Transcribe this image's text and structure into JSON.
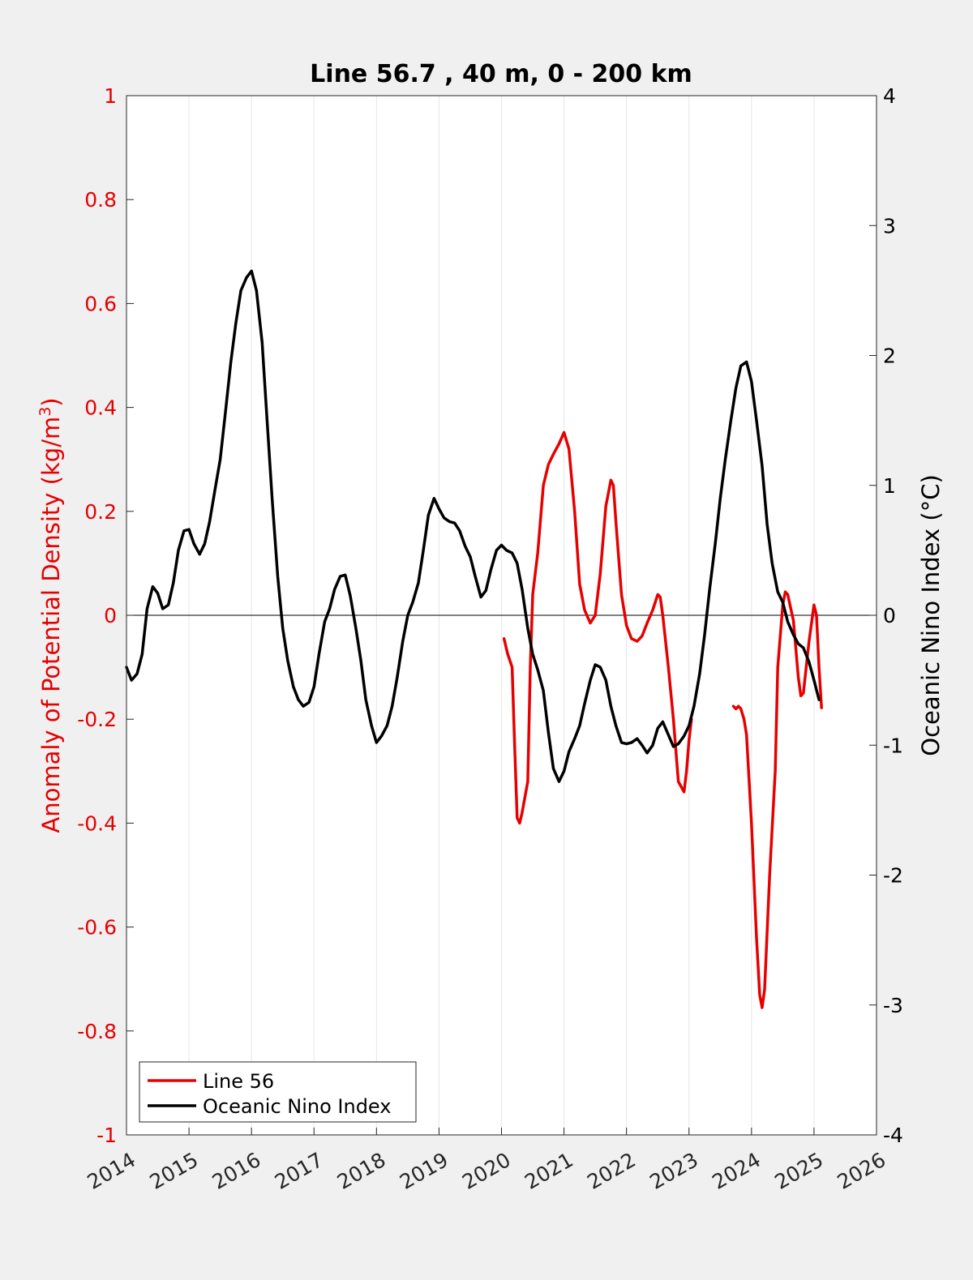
{
  "chart_data": {
    "type": "line",
    "title": "Line 56.7 , 40 m, 0 - 200 km",
    "xlabel": "",
    "xlim": [
      2014,
      2026
    ],
    "x_ticks": [
      "2014",
      "2015",
      "2016",
      "2017",
      "2018",
      "2019",
      "2020",
      "2021",
      "2022",
      "2023",
      "2024",
      "2025",
      "2026"
    ],
    "left_axis": {
      "label_main": "Anomaly of Potential Density (kg/m",
      "label_sup": "3",
      "label_end": ")",
      "ylim": [
        -1,
        1
      ],
      "ticks": [
        "1",
        "0.8",
        "0.6",
        "0.4",
        "0.2",
        "0",
        "-0.2",
        "-0.4",
        "-0.6",
        "-0.8",
        "-1"
      ],
      "tick_values": [
        1,
        0.8,
        0.6,
        0.4,
        0.2,
        0,
        -0.2,
        -0.4,
        -0.6,
        -0.8,
        -1
      ],
      "color": "#e60000"
    },
    "right_axis": {
      "label": "Oceanic Nino Index (°C)",
      "ylim": [
        -4,
        4
      ],
      "ticks": [
        "4",
        "3",
        "2",
        "1",
        "0",
        "-1",
        "-2",
        "-3",
        "-4"
      ],
      "tick_values": [
        4,
        3,
        2,
        1,
        0,
        -1,
        -2,
        -3,
        -4
      ],
      "color": "#000000"
    },
    "grid": "vertical",
    "zero_line": true,
    "legend_position": "bottom-left",
    "series": [
      {
        "name": "Line 56",
        "axis": "left",
        "color": "#e60000",
        "segments": [
          [
            [
              2020.04,
              -0.045
            ],
            [
              2020.1,
              -0.075
            ],
            [
              2020.17,
              -0.1
            ],
            [
              2020.21,
              -0.25
            ],
            [
              2020.25,
              -0.39
            ],
            [
              2020.29,
              -0.4
            ],
            [
              2020.33,
              -0.38
            ],
            [
              2020.42,
              -0.32
            ],
            [
              2020.46,
              -0.1
            ],
            [
              2020.5,
              0.04
            ],
            [
              2020.58,
              0.12
            ],
            [
              2020.67,
              0.25
            ],
            [
              2020.75,
              0.29
            ],
            [
              2020.83,
              0.31
            ],
            [
              2020.92,
              0.33
            ],
            [
              2021.0,
              0.352
            ],
            [
              2021.08,
              0.32
            ],
            [
              2021.17,
              0.2
            ],
            [
              2021.25,
              0.06
            ],
            [
              2021.33,
              0.01
            ],
            [
              2021.42,
              -0.015
            ],
            [
              2021.5,
              0.0
            ],
            [
              2021.58,
              0.08
            ],
            [
              2021.67,
              0.21
            ],
            [
              2021.75,
              0.26
            ],
            [
              2021.79,
              0.25
            ],
            [
              2021.83,
              0.18
            ],
            [
              2021.92,
              0.04
            ],
            [
              2022.0,
              -0.02
            ],
            [
              2022.08,
              -0.045
            ],
            [
              2022.17,
              -0.05
            ],
            [
              2022.25,
              -0.04
            ],
            [
              2022.33,
              -0.015
            ],
            [
              2022.42,
              0.01
            ],
            [
              2022.5,
              0.04
            ],
            [
              2022.54,
              0.035
            ],
            [
              2022.58,
              0.0
            ],
            [
              2022.67,
              -0.1
            ],
            [
              2022.75,
              -0.2
            ],
            [
              2022.83,
              -0.32
            ],
            [
              2022.92,
              -0.34
            ],
            [
              2022.96,
              -0.3
            ],
            [
              2023.0,
              -0.24
            ],
            [
              2023.04,
              -0.2
            ]
          ],
          [
            [
              2023.71,
              -0.175
            ],
            [
              2023.75,
              -0.18
            ],
            [
              2023.79,
              -0.175
            ],
            [
              2023.83,
              -0.18
            ],
            [
              2023.88,
              -0.2
            ],
            [
              2023.92,
              -0.23
            ],
            [
              2024.0,
              -0.4
            ],
            [
              2024.08,
              -0.62
            ],
            [
              2024.13,
              -0.73
            ],
            [
              2024.17,
              -0.755
            ],
            [
              2024.21,
              -0.72
            ],
            [
              2024.29,
              -0.5
            ],
            [
              2024.38,
              -0.3
            ],
            [
              2024.42,
              -0.1
            ],
            [
              2024.5,
              0.02
            ],
            [
              2024.54,
              0.045
            ],
            [
              2024.58,
              0.04
            ],
            [
              2024.67,
              -0.01
            ],
            [
              2024.75,
              -0.12
            ],
            [
              2024.79,
              -0.155
            ],
            [
              2024.83,
              -0.15
            ],
            [
              2024.92,
              -0.05
            ],
            [
              2025.0,
              0.02
            ],
            [
              2025.04,
              0.0
            ],
            [
              2025.08,
              -0.1
            ],
            [
              2025.12,
              -0.178
            ]
          ]
        ]
      },
      {
        "name": "Oceanic Nino Index",
        "axis": "right",
        "color": "#000000",
        "segments": [
          [
            [
              2014.0,
              -0.4
            ],
            [
              2014.08,
              -0.5
            ],
            [
              2014.17,
              -0.45
            ],
            [
              2014.25,
              -0.3
            ],
            [
              2014.33,
              0.05
            ],
            [
              2014.42,
              0.22
            ],
            [
              2014.5,
              0.17
            ],
            [
              2014.58,
              0.05
            ],
            [
              2014.67,
              0.08
            ],
            [
              2014.75,
              0.25
            ],
            [
              2014.83,
              0.5
            ],
            [
              2014.92,
              0.65
            ],
            [
              2015.0,
              0.66
            ],
            [
              2015.08,
              0.55
            ],
            [
              2015.17,
              0.47
            ],
            [
              2015.25,
              0.55
            ],
            [
              2015.33,
              0.72
            ],
            [
              2015.42,
              0.98
            ],
            [
              2015.5,
              1.2
            ],
            [
              2015.58,
              1.55
            ],
            [
              2015.67,
              1.95
            ],
            [
              2015.75,
              2.25
            ],
            [
              2015.83,
              2.5
            ],
            [
              2015.92,
              2.6
            ],
            [
              2016.0,
              2.65
            ],
            [
              2016.08,
              2.5
            ],
            [
              2016.17,
              2.1
            ],
            [
              2016.25,
              1.5
            ],
            [
              2016.33,
              0.9
            ],
            [
              2016.42,
              0.3
            ],
            [
              2016.5,
              -0.1
            ],
            [
              2016.58,
              -0.35
            ],
            [
              2016.67,
              -0.55
            ],
            [
              2016.75,
              -0.65
            ],
            [
              2016.83,
              -0.7
            ],
            [
              2016.92,
              -0.67
            ],
            [
              2017.0,
              -0.55
            ],
            [
              2017.08,
              -0.3
            ],
            [
              2017.17,
              -0.05
            ],
            [
              2017.25,
              0.05
            ],
            [
              2017.33,
              0.2
            ],
            [
              2017.42,
              0.3
            ],
            [
              2017.5,
              0.31
            ],
            [
              2017.58,
              0.15
            ],
            [
              2017.67,
              -0.1
            ],
            [
              2017.75,
              -0.35
            ],
            [
              2017.83,
              -0.65
            ],
            [
              2017.92,
              -0.85
            ],
            [
              2018.0,
              -0.98
            ],
            [
              2018.08,
              -0.93
            ],
            [
              2018.17,
              -0.85
            ],
            [
              2018.25,
              -0.7
            ],
            [
              2018.33,
              -0.48
            ],
            [
              2018.42,
              -0.2
            ],
            [
              2018.5,
              0.0
            ],
            [
              2018.58,
              0.1
            ],
            [
              2018.67,
              0.25
            ],
            [
              2018.75,
              0.5
            ],
            [
              2018.83,
              0.77
            ],
            [
              2018.92,
              0.9
            ],
            [
              2019.0,
              0.82
            ],
            [
              2019.08,
              0.75
            ],
            [
              2019.17,
              0.72
            ],
            [
              2019.25,
              0.71
            ],
            [
              2019.33,
              0.65
            ],
            [
              2019.42,
              0.53
            ],
            [
              2019.5,
              0.45
            ],
            [
              2019.58,
              0.3
            ],
            [
              2019.67,
              0.14
            ],
            [
              2019.75,
              0.19
            ],
            [
              2019.83,
              0.35
            ],
            [
              2019.92,
              0.5
            ],
            [
              2020.0,
              0.54
            ],
            [
              2020.08,
              0.5
            ],
            [
              2020.17,
              0.48
            ],
            [
              2020.25,
              0.4
            ],
            [
              2020.33,
              0.2
            ],
            [
              2020.42,
              -0.1
            ],
            [
              2020.5,
              -0.3
            ],
            [
              2020.58,
              -0.42
            ],
            [
              2020.67,
              -0.58
            ],
            [
              2020.75,
              -0.9
            ],
            [
              2020.83,
              -1.18
            ],
            [
              2020.92,
              -1.28
            ],
            [
              2021.0,
              -1.2
            ],
            [
              2021.08,
              -1.05
            ],
            [
              2021.17,
              -0.95
            ],
            [
              2021.25,
              -0.85
            ],
            [
              2021.33,
              -0.68
            ],
            [
              2021.42,
              -0.5
            ],
            [
              2021.5,
              -0.38
            ],
            [
              2021.58,
              -0.4
            ],
            [
              2021.67,
              -0.5
            ],
            [
              2021.75,
              -0.7
            ],
            [
              2021.83,
              -0.85
            ],
            [
              2021.92,
              -0.98
            ],
            [
              2022.0,
              -0.99
            ],
            [
              2022.08,
              -0.98
            ],
            [
              2022.17,
              -0.95
            ],
            [
              2022.25,
              -1.0
            ],
            [
              2022.33,
              -1.06
            ],
            [
              2022.42,
              -1.0
            ],
            [
              2022.5,
              -0.87
            ],
            [
              2022.58,
              -0.82
            ],
            [
              2022.67,
              -0.92
            ],
            [
              2022.75,
              -1.01
            ],
            [
              2022.83,
              -0.99
            ],
            [
              2022.92,
              -0.93
            ],
            [
              2023.0,
              -0.85
            ],
            [
              2023.08,
              -0.7
            ],
            [
              2023.17,
              -0.45
            ],
            [
              2023.25,
              -0.15
            ],
            [
              2023.33,
              0.2
            ],
            [
              2023.42,
              0.55
            ],
            [
              2023.5,
              0.9
            ],
            [
              2023.58,
              1.2
            ],
            [
              2023.67,
              1.5
            ],
            [
              2023.75,
              1.75
            ],
            [
              2023.83,
              1.92
            ],
            [
              2023.92,
              1.95
            ],
            [
              2024.0,
              1.8
            ],
            [
              2024.08,
              1.5
            ],
            [
              2024.17,
              1.15
            ],
            [
              2024.25,
              0.7
            ],
            [
              2024.33,
              0.4
            ],
            [
              2024.42,
              0.18
            ],
            [
              2024.5,
              0.1
            ],
            [
              2024.58,
              -0.05
            ],
            [
              2024.67,
              -0.15
            ],
            [
              2024.75,
              -0.22
            ],
            [
              2024.83,
              -0.25
            ],
            [
              2024.92,
              -0.36
            ],
            [
              2025.0,
              -0.5
            ],
            [
              2025.08,
              -0.65
            ]
          ]
        ]
      }
    ]
  }
}
